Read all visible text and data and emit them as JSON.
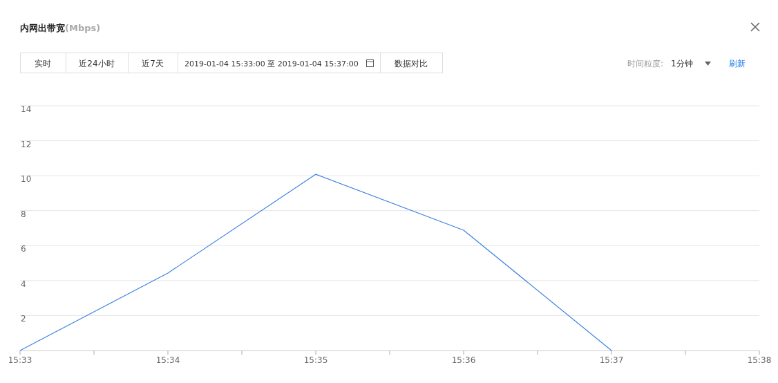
{
  "chart_data": {
    "type": "line",
    "title": "内网出带宽",
    "subtitle": "(Mbps)",
    "x": [
      15.55,
      15.566667,
      15.583333,
      15.6,
      15.616667
    ],
    "series": [
      {
        "color": "#3b82e0",
        "values": [
          0,
          4.43,
          10.08,
          6.88,
          0
        ]
      }
    ],
    "xlim": [
      15.55,
      15.633333
    ],
    "xticks": [
      {
        "value": 15.55,
        "label": "15:33"
      },
      {
        "value": 15.558333,
        "label": null
      },
      {
        "value": 15.566667,
        "label": "15:34"
      },
      {
        "value": 15.575,
        "label": null
      },
      {
        "value": 15.583333,
        "label": "15:35"
      },
      {
        "value": 15.591667,
        "label": null
      },
      {
        "value": 15.6,
        "label": "15:36"
      },
      {
        "value": 15.608333,
        "label": null
      },
      {
        "value": 15.616667,
        "label": "15:37"
      },
      {
        "value": 15.625,
        "label": null
      },
      {
        "value": 15.633333,
        "label": "15:38"
      }
    ],
    "ylim": [
      0,
      14
    ],
    "yticks": [
      2,
      4,
      6,
      8,
      10,
      12,
      14
    ],
    "grid": "y",
    "marker": "none",
    "line_style": "solid",
    "annotations": [
      "实时",
      "近24小时",
      "近7天",
      "2019-01-04 15:33:00 至 2019-01-04 15:37:00",
      "数据对比",
      "时间粒度:",
      "1分钟",
      "刷新"
    ]
  }
}
